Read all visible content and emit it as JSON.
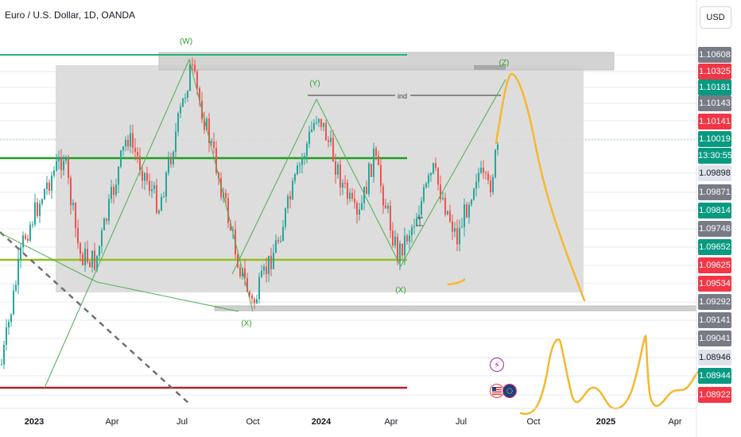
{
  "header": {
    "title": "Euro / U.S. Dollar, 1D, OANDA",
    "currency_button": "USD"
  },
  "price_axis": {
    "tags": [
      {
        "label": "1.10608",
        "bg": "#787b86",
        "fg": "#ffffff"
      },
      {
        "label": "1.10325",
        "bg": "#f23645",
        "fg": "#ffffff"
      },
      {
        "label": "1.10181",
        "bg": "#089981",
        "fg": "#ffffff"
      },
      {
        "label": "1.10143",
        "bg": "#787b86",
        "fg": "#ffffff"
      },
      {
        "label": "1.10141",
        "bg": "#f23645",
        "fg": "#ffffff"
      },
      {
        "label": "1.10019",
        "bg": "#089981",
        "fg": "#ffffff"
      },
      {
        "label": "13:30:55",
        "bg": "#089981",
        "fg": "#ffffff"
      },
      {
        "label": "1.09898",
        "bg": "#e0e3eb",
        "fg": "#131722"
      },
      {
        "label": "1.09871",
        "bg": "#787b86",
        "fg": "#ffffff"
      },
      {
        "label": "1.09814",
        "bg": "#089981",
        "fg": "#ffffff"
      },
      {
        "label": "1.09748",
        "bg": "#787b86",
        "fg": "#ffffff"
      },
      {
        "label": "1.09652",
        "bg": "#089981",
        "fg": "#ffffff"
      },
      {
        "label": "1.09625",
        "bg": "#f23645",
        "fg": "#ffffff"
      },
      {
        "label": "1.09534",
        "bg": "#f23645",
        "fg": "#ffffff"
      },
      {
        "label": "1.09292",
        "bg": "#787b86",
        "fg": "#ffffff"
      },
      {
        "label": "1.09141",
        "bg": "#787b86",
        "fg": "#ffffff"
      },
      {
        "label": "1.09041",
        "bg": "#787b86",
        "fg": "#ffffff"
      },
      {
        "label": "1.08946",
        "bg": "#e0e3eb",
        "fg": "#131722"
      },
      {
        "label": "1.08944",
        "bg": "#089981",
        "fg": "#ffffff"
      },
      {
        "label": "1.08922",
        "bg": "#f23645",
        "fg": "#ffffff"
      }
    ]
  },
  "time_axis": {
    "labels": [
      {
        "label": "2023",
        "bold": true
      },
      {
        "label": "Apr",
        "bold": false
      },
      {
        "label": "Jul",
        "bold": false
      },
      {
        "label": "Oct",
        "bold": false
      },
      {
        "label": "2024",
        "bold": true
      },
      {
        "label": "Apr",
        "bold": false
      },
      {
        "label": "Jul",
        "bold": false
      },
      {
        "label": "Oct",
        "bold": false
      },
      {
        "label": "2025",
        "bold": true
      },
      {
        "label": "Apr",
        "bold": false
      }
    ]
  },
  "wave_labels": [
    {
      "label": "(W)"
    },
    {
      "label": "(Y)"
    },
    {
      "label": "(X)"
    },
    {
      "label": "(X)"
    },
    {
      "label": "(Z)"
    }
  ],
  "annotations": {
    "ind_label": "ind"
  },
  "colors": {
    "up_candle": "#26a69a",
    "down_candle": "#ef5350",
    "wave_line": "#4caf50",
    "projection": "#f5b82e",
    "support_green": "#1e9e1e",
    "support_red": "#b22222",
    "box": "#d9d9d9"
  },
  "icons": {
    "flash": "lightning-icon",
    "us_flag": "us-flag-icon",
    "eu_flag": "eu-flag-icon"
  }
}
